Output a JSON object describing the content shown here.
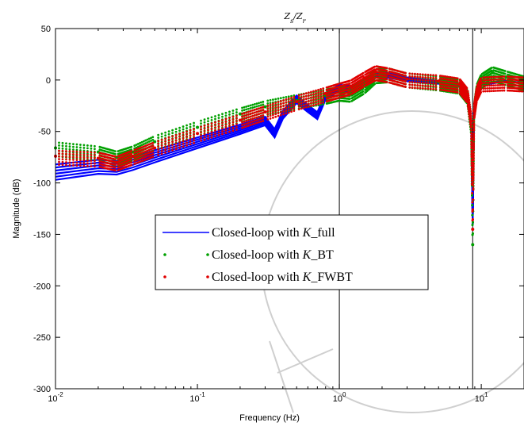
{
  "chart_data": {
    "type": "line",
    "title": "Z_s/Z_r",
    "xlabel": "Frequency  (Hz)",
    "ylabel": "Magnitude (dB)",
    "xscale": "log",
    "xlim": [
      0.01,
      20
    ],
    "ylim": [
      -300,
      50
    ],
    "x_ticks": [
      0.01,
      0.1,
      1,
      10
    ],
    "x_tick_labels": [
      {
        "base": "10",
        "exp": "-2"
      },
      {
        "base": "10",
        "exp": "-1"
      },
      {
        "base": "10",
        "exp": "0"
      },
      {
        "base": "10",
        "exp": "1"
      }
    ],
    "y_ticks": [
      50,
      0,
      -50,
      -100,
      -150,
      -200,
      -250,
      -300
    ],
    "y_tick_labels": [
      "50",
      "0",
      "-50",
      "-100",
      "-150",
      "-200",
      "-250",
      "-300"
    ],
    "vertical_lines": [
      1.0,
      8.7
    ],
    "legend_position": "center",
    "series": [
      {
        "name": "Closed-loop with K_full",
        "style": "line",
        "color": "#0000ff",
        "x": [
          0.01,
          0.02,
          0.027,
          0.035,
          0.05,
          0.1,
          0.2,
          0.3,
          0.35,
          0.4,
          0.5,
          0.6,
          0.7,
          0.8,
          1.0,
          1.2,
          1.5,
          1.8,
          2.2,
          3.0,
          5.0,
          7.0,
          8.0,
          8.5,
          8.7,
          8.9,
          9.3,
          10.0,
          15.0,
          20.0
        ],
        "y": [
          -88,
          -83,
          -84,
          -80,
          -73,
          -60,
          -47,
          -39,
          -51,
          -33,
          -18,
          -27,
          -34,
          -15,
          -7,
          -8,
          -2,
          6,
          5,
          1,
          -2,
          -5,
          -15,
          -45,
          -140,
          -30,
          -12,
          -4,
          -1,
          -3
        ]
      },
      {
        "name": "Closed-loop with K_BT",
        "style": "dots",
        "color": "#00a000",
        "x": [
          0.01,
          0.02,
          0.027,
          0.035,
          0.05,
          0.1,
          0.2,
          0.3,
          0.5,
          0.8,
          1.0,
          1.2,
          1.5,
          1.8,
          2.2,
          3.0,
          5.0,
          7.0,
          8.0,
          8.5,
          8.7,
          8.9,
          9.3,
          10.0,
          12.0,
          15.0,
          20.0
        ],
        "y": [
          -66,
          -70,
          -75,
          -70,
          -60,
          -46,
          -33,
          -26,
          -20,
          -15,
          -12,
          -13,
          -5,
          5,
          6,
          1,
          -2,
          -5,
          -15,
          -45,
          -160,
          -30,
          -10,
          0,
          7,
          3,
          -2
        ]
      },
      {
        "name": "Closed-loop with K_FWBT",
        "style": "dots",
        "color": "#e00000",
        "x": [
          0.01,
          0.02,
          0.027,
          0.035,
          0.05,
          0.1,
          0.2,
          0.3,
          0.5,
          0.8,
          1.0,
          1.2,
          1.5,
          1.8,
          2.2,
          3.0,
          5.0,
          7.0,
          8.0,
          8.5,
          8.7,
          8.9,
          9.3,
          10.0,
          15.0,
          20.0
        ],
        "y": [
          -74,
          -76,
          -80,
          -74,
          -66,
          -52,
          -39,
          -31,
          -21,
          -13,
          -9,
          -6,
          2,
          8,
          6,
          1,
          -1,
          -4,
          -14,
          -40,
          -145,
          -30,
          -12,
          -3,
          -2,
          -3
        ]
      }
    ]
  }
}
